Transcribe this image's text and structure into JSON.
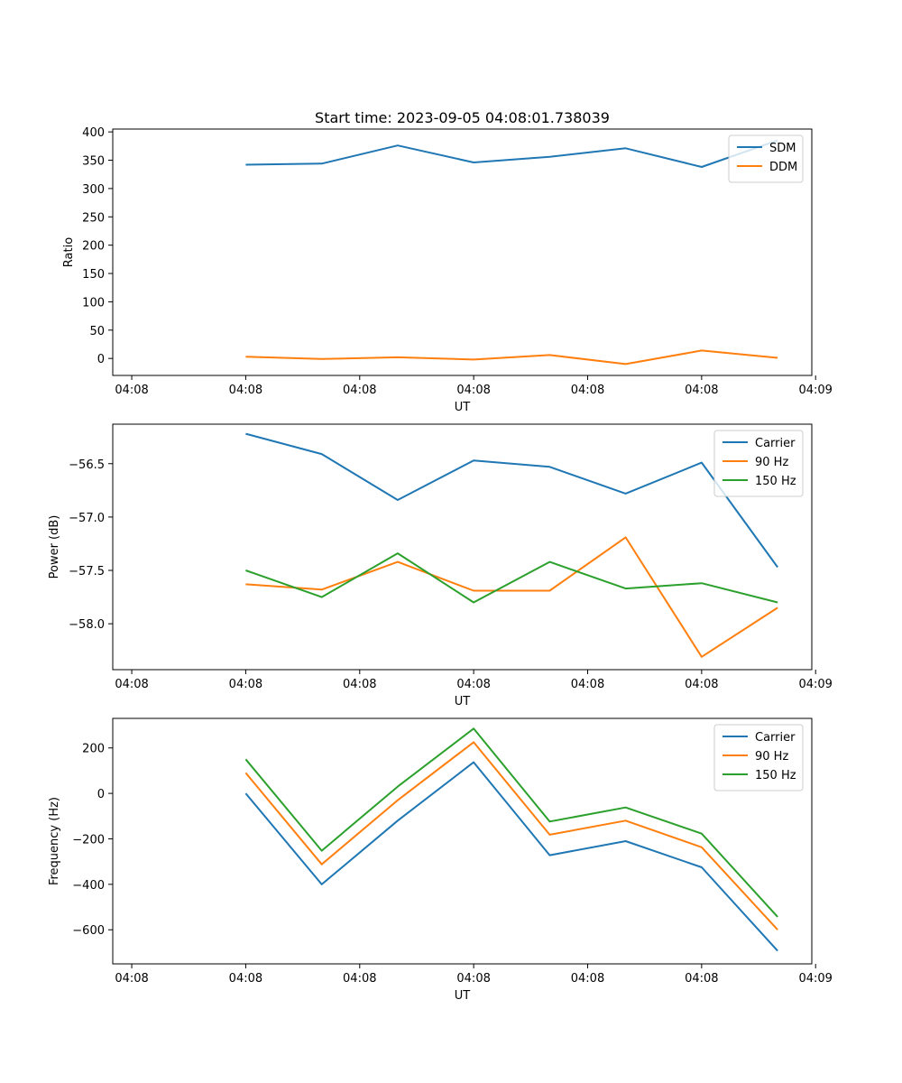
{
  "figure_title": "Start time: 2023-09-05 04:08:01.738039",
  "chart_data": [
    {
      "type": "line",
      "title": "Start time: 2023-09-05 04:08:01.738039",
      "xlabel": "UT",
      "ylabel": "Ratio",
      "x": [
        1,
        2,
        3,
        4,
        5,
        6,
        7,
        8
      ],
      "xlim": [
        -0.75,
        8.45
      ],
      "xticks": [
        -0.5,
        1,
        2.5,
        4,
        5.5,
        7,
        8.5
      ],
      "xtick_labels": [
        "04:08",
        "04:08",
        "04:08",
        "04:08",
        "04:08",
        "04:08",
        "04:09"
      ],
      "ylim": [
        -30,
        405
      ],
      "yticks": [
        0,
        50,
        100,
        150,
        200,
        250,
        300,
        350,
        400
      ],
      "ytick_labels": [
        "0",
        "50",
        "100",
        "150",
        "200",
        "250",
        "300",
        "350",
        "400"
      ],
      "legend_position": "top-right",
      "series": [
        {
          "name": "SDM",
          "color": "#1f77b4",
          "values": [
            342,
            344,
            376,
            346,
            356,
            371,
            338,
            385
          ]
        },
        {
          "name": "DDM",
          "color": "#ff7f0e",
          "values": [
            3,
            -1,
            2,
            -2,
            6,
            -10,
            14,
            1
          ]
        }
      ]
    },
    {
      "type": "line",
      "title": "",
      "xlabel": "UT",
      "ylabel": "Power (dB)",
      "x": [
        1,
        2,
        3,
        4,
        5,
        6,
        7,
        8
      ],
      "xlim": [
        -0.75,
        8.45
      ],
      "xticks": [
        -0.5,
        1,
        2.5,
        4,
        5.5,
        7,
        8.5
      ],
      "xtick_labels": [
        "04:08",
        "04:08",
        "04:08",
        "04:08",
        "04:08",
        "04:08",
        "04:09"
      ],
      "ylim": [
        -58.43,
        -56.13
      ],
      "yticks": [
        -58.0,
        -57.5,
        -57.0,
        -56.5
      ],
      "ytick_labels": [
        "−58.0",
        "−57.5",
        "−57.0",
        "−56.5"
      ],
      "legend_position": "top-right",
      "series": [
        {
          "name": "Carrier",
          "color": "#1f77b4",
          "values": [
            -56.22,
            -56.41,
            -56.84,
            -56.47,
            -56.53,
            -56.78,
            -56.49,
            -57.47
          ]
        },
        {
          "name": "90 Hz",
          "color": "#ff7f0e",
          "values": [
            -57.63,
            -57.68,
            -57.42,
            -57.69,
            -57.69,
            -57.19,
            -58.31,
            -57.85
          ]
        },
        {
          "name": "150 Hz",
          "color": "#2ca02c",
          "values": [
            -57.5,
            -57.75,
            -57.34,
            -57.8,
            -57.42,
            -57.67,
            -57.62,
            -57.8
          ]
        }
      ]
    },
    {
      "type": "line",
      "title": "",
      "xlabel": "UT",
      "ylabel": "Frequency (Hz)",
      "x": [
        1,
        2,
        3,
        4,
        5,
        6,
        7,
        8
      ],
      "xlim": [
        -0.75,
        8.45
      ],
      "xticks": [
        -0.5,
        1,
        2.5,
        4,
        5.5,
        7,
        8.5
      ],
      "xtick_labels": [
        "04:08",
        "04:08",
        "04:08",
        "04:08",
        "04:08",
        "04:08",
        "04:09"
      ],
      "ylim": [
        -750,
        330
      ],
      "yticks": [
        -600,
        -400,
        -200,
        0,
        200
      ],
      "ytick_labels": [
        "−600",
        "−400",
        "−200",
        "0",
        "200"
      ],
      "legend_position": "top-right",
      "series": [
        {
          "name": "Carrier",
          "color": "#1f77b4",
          "values": [
            0,
            -400,
            -120,
            137,
            -272,
            -210,
            -325,
            -693
          ]
        },
        {
          "name": "90 Hz",
          "color": "#ff7f0e",
          "values": [
            90,
            -312,
            -30,
            225,
            -182,
            -120,
            -237,
            -600
          ]
        },
        {
          "name": "150 Hz",
          "color": "#2ca02c",
          "values": [
            150,
            -252,
            30,
            285,
            -124,
            -62,
            -177,
            -543
          ]
        }
      ]
    }
  ]
}
